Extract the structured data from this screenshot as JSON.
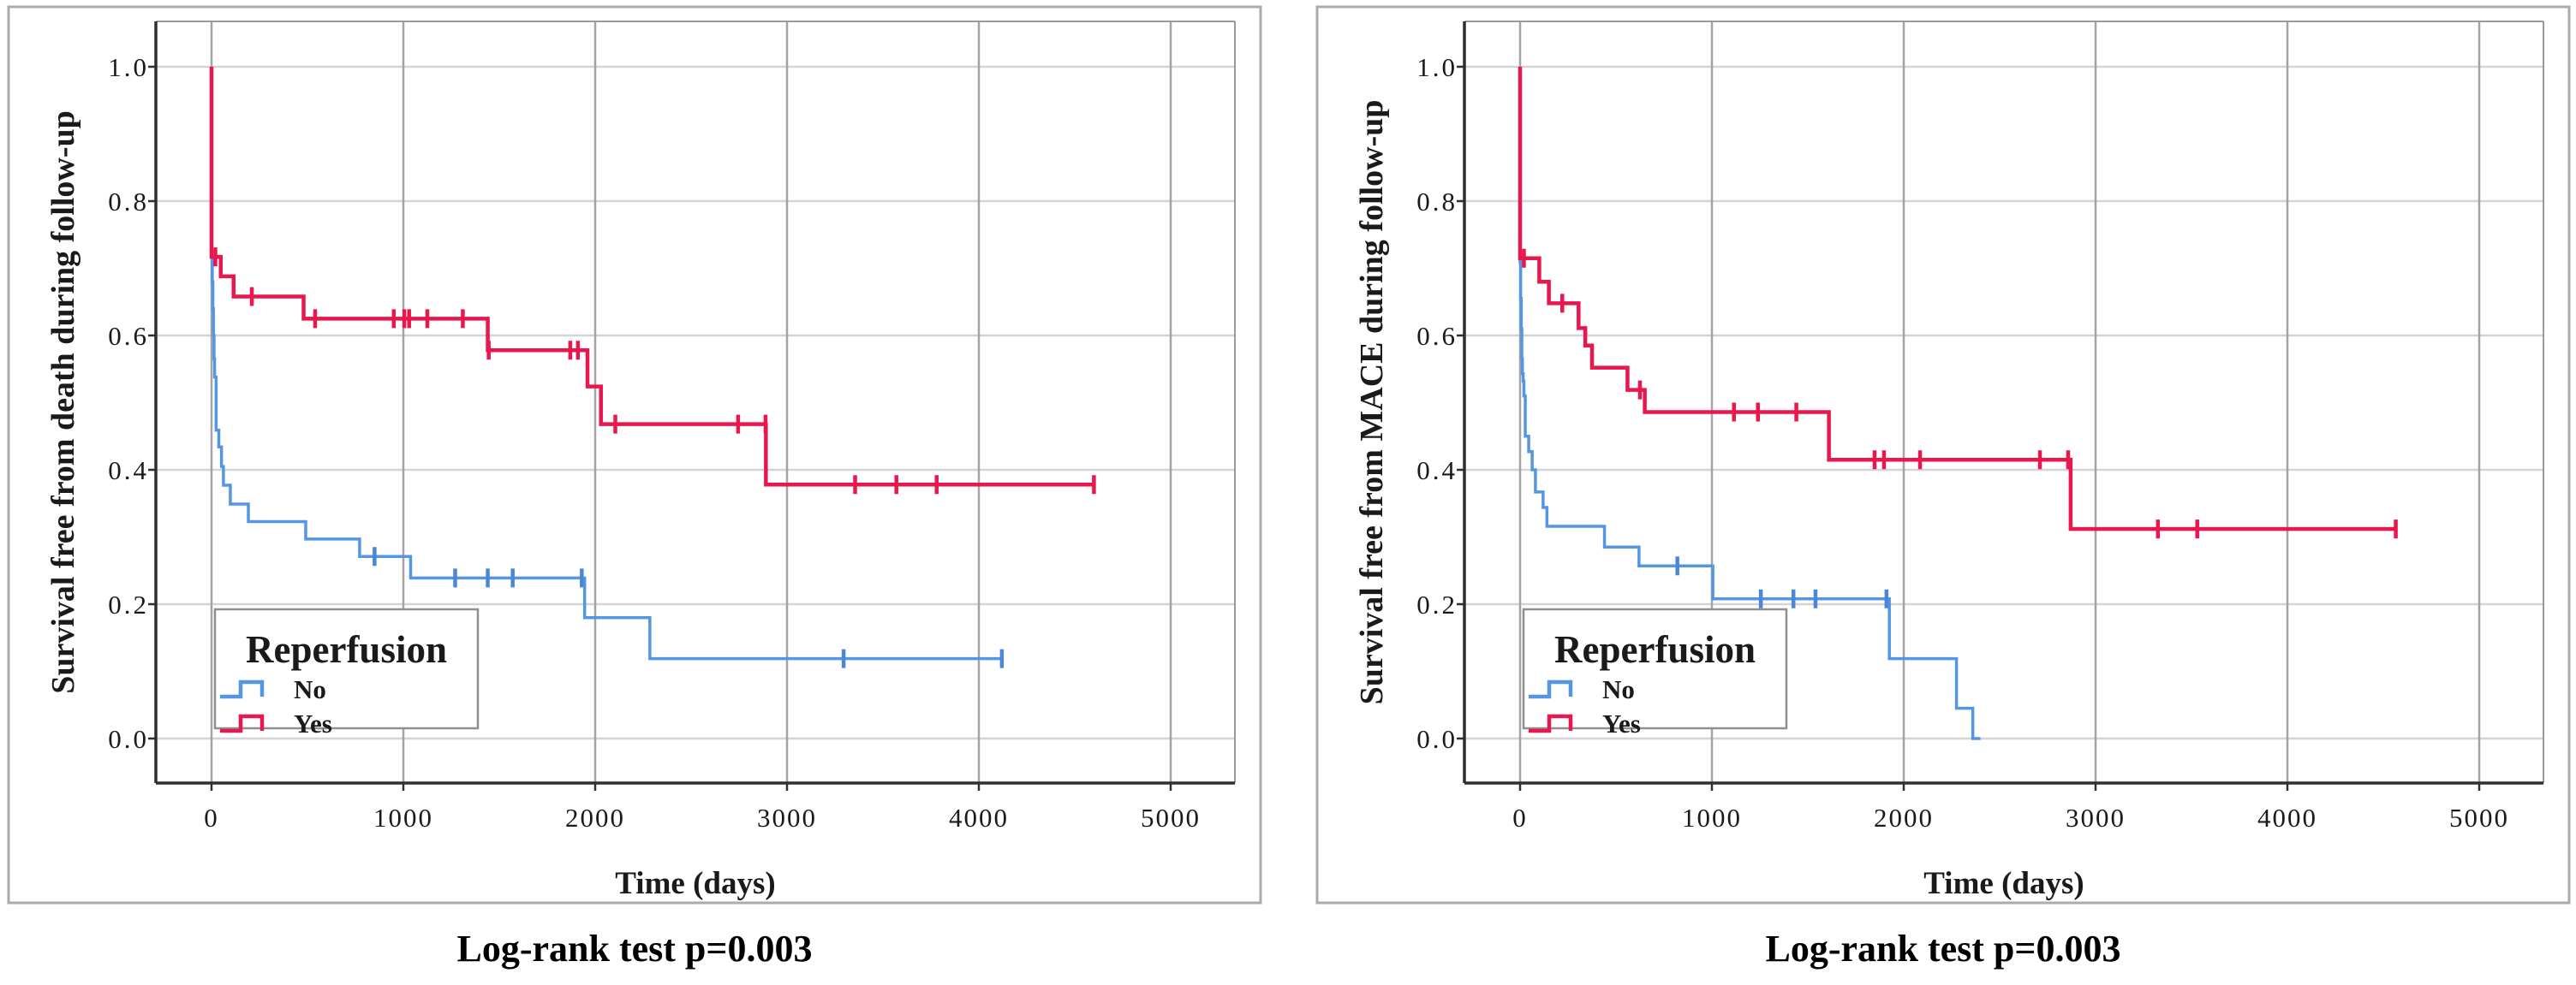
{
  "colors": {
    "background": "#ffffff",
    "curve_no_blue": "#5596e3",
    "censor_no_blue": "#4b87d7",
    "curve_yes_red": "#e8174d",
    "censor_yes_red": "#e8174d",
    "grid_horizontal": "#d4d4d4",
    "grid_vertical": "#a4a4a4",
    "frame_dark": "#2f2f2f",
    "frame_light": "#9a9a9a",
    "outer_border": "#ababab",
    "legend_border": "#8f8f8f",
    "text": "#1a1a1a"
  },
  "chart_data": [
    {
      "type": "line",
      "subtype": "kaplan-meier-step",
      "title": "",
      "ylabel": "Survival free from death during follow-up",
      "xlabel": "Time (days)",
      "caption": "Log-rank test p=0.003",
      "xlim": [
        -290,
        5310
      ],
      "ylim": [
        -0.066,
        1.068
      ],
      "grid": true,
      "xtick_values": [
        0,
        1000,
        2000,
        3000,
        4000,
        5000
      ],
      "xtick_labels": [
        "0",
        "1000",
        "2000",
        "3000",
        "4000",
        "5000"
      ],
      "ytick_values": [
        0.0,
        0.2,
        0.4,
        0.6,
        0.8,
        1.0
      ],
      "ytick_labels": [
        "0.0",
        "0.2",
        "0.4",
        "0.6",
        "0.8",
        "1.0"
      ],
      "legend": {
        "title": "Reperfusion",
        "position": "inside-lower-left",
        "entries": [
          "No",
          "Yes"
        ]
      },
      "series": [
        {
          "name": "No",
          "color_key": "curve_no_blue",
          "censor_color_key": "censor_no_blue",
          "start": [
            0,
            1.0
          ],
          "steps": [
            [
              0,
              0.717
            ],
            [
              4,
              0.68
            ],
            [
              7,
              0.64
            ],
            [
              10,
              0.6
            ],
            [
              13,
              0.565
            ],
            [
              16,
              0.538
            ],
            [
              24,
              0.459
            ],
            [
              38,
              0.434
            ],
            [
              52,
              0.405
            ],
            [
              62,
              0.377
            ],
            [
              98,
              0.349
            ],
            [
              192,
              0.323
            ],
            [
              491,
              0.297
            ],
            [
              772,
              0.271
            ],
            [
              1038,
              0.239
            ],
            [
              1945,
              0.18
            ],
            [
              2285,
              0.119
            ]
          ],
          "end_time": 4120,
          "censors": [
            [
              850,
              0.271
            ],
            [
              1270,
              0.239
            ],
            [
              1440,
              0.239
            ],
            [
              1570,
              0.239
            ],
            [
              1930,
              0.239
            ],
            [
              3295,
              0.119
            ],
            [
              4120,
              0.119
            ]
          ]
        },
        {
          "name": "Yes",
          "color_key": "curve_yes_red",
          "censor_color_key": "censor_yes_red",
          "start": [
            0,
            1.0
          ],
          "steps": [
            [
              0,
              0.717
            ],
            [
              48,
              0.688
            ],
            [
              115,
              0.658
            ],
            [
              480,
              0.625
            ],
            [
              1440,
              0.578
            ],
            [
              1960,
              0.524
            ],
            [
              2030,
              0.468
            ],
            [
              2890,
              0.378
            ]
          ],
          "end_time": 4600,
          "censors": [
            [
              20,
              0.717
            ],
            [
              210,
              0.658
            ],
            [
              540,
              0.625
            ],
            [
              950,
              0.625
            ],
            [
              1005,
              0.625
            ],
            [
              1030,
              0.625
            ],
            [
              1125,
              0.625
            ],
            [
              1310,
              0.625
            ],
            [
              1445,
              0.578
            ],
            [
              1870,
              0.578
            ],
            [
              1910,
              0.578
            ],
            [
              2105,
              0.468
            ],
            [
              2745,
              0.468
            ],
            [
              2888,
              0.468
            ],
            [
              3355,
              0.378
            ],
            [
              3570,
              0.378
            ],
            [
              3780,
              0.378
            ],
            [
              4600,
              0.378
            ]
          ]
        }
      ]
    },
    {
      "type": "line",
      "subtype": "kaplan-meier-step",
      "title": "",
      "ylabel": "Survival free from MACE during follow-up",
      "xlabel": "Time (days)",
      "caption": "Log-rank test p=0.003",
      "xlim": [
        -290,
        5310
      ],
      "ylim": [
        -0.066,
        1.068
      ],
      "grid": true,
      "xtick_values": [
        0,
        1000,
        2000,
        3000,
        4000,
        5000
      ],
      "xtick_labels": [
        "0",
        "1000",
        "2000",
        "3000",
        "4000",
        "5000"
      ],
      "ytick_values": [
        0.0,
        0.2,
        0.4,
        0.6,
        0.8,
        1.0
      ],
      "ytick_labels": [
        "0.0",
        "0.2",
        "0.4",
        "0.6",
        "0.8",
        "1.0"
      ],
      "legend": {
        "title": "Reperfusion",
        "position": "inside-lower-left",
        "entries": [
          "No",
          "Yes"
        ]
      },
      "series": [
        {
          "name": "No",
          "color_key": "curve_no_blue",
          "censor_color_key": "censor_no_blue",
          "start": [
            0,
            1.0
          ],
          "steps": [
            [
              0,
              0.71
            ],
            [
              3,
              0.655
            ],
            [
              6,
              0.61
            ],
            [
              9,
              0.565
            ],
            [
              12,
              0.543
            ],
            [
              16,
              0.532
            ],
            [
              20,
              0.51
            ],
            [
              27,
              0.45
            ],
            [
              45,
              0.427
            ],
            [
              63,
              0.4
            ],
            [
              80,
              0.367
            ],
            [
              120,
              0.344
            ],
            [
              140,
              0.316
            ],
            [
              440,
              0.285
            ],
            [
              620,
              0.257
            ],
            [
              1005,
              0.208
            ],
            [
              1925,
              0.119
            ],
            [
              2275,
              0.045
            ],
            [
              2360,
              0.0
            ]
          ],
          "end_time": 2400,
          "censors": [
            [
              820,
              0.257
            ],
            [
              1255,
              0.208
            ],
            [
              1425,
              0.208
            ],
            [
              1540,
              0.208
            ],
            [
              1910,
              0.208
            ]
          ]
        },
        {
          "name": "Yes",
          "color_key": "curve_yes_red",
          "censor_color_key": "censor_yes_red",
          "start": [
            0,
            1.0
          ],
          "steps": [
            [
              0,
              0.715
            ],
            [
              100,
              0.68
            ],
            [
              150,
              0.648
            ],
            [
              305,
              0.611
            ],
            [
              340,
              0.585
            ],
            [
              375,
              0.552
            ],
            [
              560,
              0.519
            ],
            [
              650,
              0.486
            ],
            [
              1610,
              0.415
            ],
            [
              2870,
              0.312
            ]
          ],
          "end_time": 4565,
          "censors": [
            [
              20,
              0.715
            ],
            [
              220,
              0.648
            ],
            [
              625,
              0.519
            ],
            [
              1115,
              0.486
            ],
            [
              1240,
              0.486
            ],
            [
              1440,
              0.486
            ],
            [
              1848,
              0.415
            ],
            [
              1897,
              0.415
            ],
            [
              2085,
              0.415
            ],
            [
              2710,
              0.415
            ],
            [
              2857,
              0.415
            ],
            [
              3325,
              0.312
            ],
            [
              3530,
              0.312
            ],
            [
              4565,
              0.312
            ]
          ]
        }
      ]
    }
  ]
}
